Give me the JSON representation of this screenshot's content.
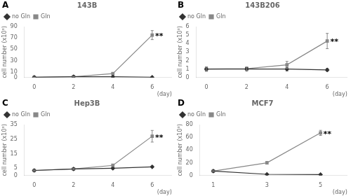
{
  "chart_data": [
    {
      "type": "line",
      "title": "143B",
      "xlabel": "(day)",
      "ylabel": "cell number (x10³)",
      "x": [
        0,
        2,
        4,
        6
      ],
      "series": [
        {
          "name": "no Gln",
          "color": "#333333",
          "marker": "diamond",
          "line_style": "solid",
          "values": [
            0.5,
            1.5,
            1.5,
            0.5
          ],
          "errors": [
            0.3,
            0.3,
            0.5,
            0.3
          ]
        },
        {
          "name": "Gln",
          "color": "#888888",
          "marker": "square",
          "line_style": "solid",
          "values": [
            0.5,
            1.5,
            7.0,
            75.0
          ],
          "errors": [
            0.3,
            0.5,
            1.5,
            8.0
          ]
        }
      ],
      "xlim": [
        -0.5,
        7
      ],
      "xticks": [
        0,
        2,
        4,
        6
      ],
      "ylim": [
        0,
        90
      ],
      "yticks": [
        0,
        10,
        30,
        50,
        70,
        90
      ],
      "annotations": [
        {
          "text": "A"
        },
        {
          "text": "**",
          "x": 6.15,
          "y": 73
        }
      ],
      "legend": "upper left",
      "grid": false
    },
    {
      "type": "line",
      "title": "143B206",
      "xlabel": "(day)",
      "ylabel": "cell number (x10³)",
      "x": [
        0,
        2,
        4,
        6
      ],
      "series": [
        {
          "name": "no Gln",
          "color": "#333333",
          "marker": "diamond",
          "line_style": "solid",
          "values": [
            1.0,
            1.0,
            1.0,
            0.9
          ],
          "errors": [
            0.25,
            0.2,
            0.2,
            0.15
          ]
        },
        {
          "name": "Gln",
          "color": "#888888",
          "marker": "square",
          "line_style": "solid",
          "values": [
            1.0,
            1.05,
            1.5,
            4.3
          ],
          "errors": [
            0.25,
            0.2,
            0.4,
            0.9
          ]
        }
      ],
      "xlim": [
        -0.5,
        7
      ],
      "xticks": [
        0,
        2,
        4,
        6
      ],
      "ylim": [
        0,
        6
      ],
      "yticks": [
        0,
        1,
        2,
        3,
        4,
        5,
        6
      ],
      "annotations": [
        {
          "text": "B"
        },
        {
          "text": "**",
          "x": 6.15,
          "y": 4.2
        }
      ],
      "legend": "upper left",
      "grid": false
    },
    {
      "type": "line",
      "title": "Hep3B",
      "xlabel": "(day)",
      "ylabel": "cell number (x10³)",
      "x": [
        0,
        2,
        4,
        6
      ],
      "series": [
        {
          "name": "no Gln",
          "color": "#333333",
          "marker": "diamond",
          "line_style": "solid",
          "values": [
            3.5,
            4.5,
            5.0,
            6.0
          ],
          "errors": [
            0.3,
            0.3,
            0.5,
            0.5
          ]
        },
        {
          "name": "Gln",
          "color": "#888888",
          "marker": "square",
          "line_style": "solid",
          "values": [
            3.5,
            4.5,
            7.0,
            27.0
          ],
          "errors": [
            0.3,
            0.3,
            0.8,
            4.0
          ]
        }
      ],
      "xlim": [
        -0.5,
        7
      ],
      "xticks": [
        0,
        2,
        4,
        6
      ],
      "ylim": [
        0,
        35
      ],
      "yticks": [
        0,
        5,
        15,
        25,
        35
      ],
      "annotations": [
        {
          "text": "C"
        },
        {
          "text": "**",
          "x": 6.15,
          "y": 26
        }
      ],
      "legend": "upper left",
      "grid": false
    },
    {
      "type": "line",
      "title": "MCF7",
      "xlabel": "(day)",
      "ylabel": "cell number (x10³)",
      "x": [
        1,
        3,
        5
      ],
      "series": [
        {
          "name": "no Gln",
          "color": "#333333",
          "marker": "diamond",
          "line_style": "solid",
          "values": [
            7.0,
            2.0,
            1.5
          ],
          "errors": [
            0.5,
            0.3,
            0.3
          ]
        },
        {
          "name": "Gln",
          "color": "#888888",
          "marker": "square",
          "line_style": "solid",
          "values": [
            7.0,
            20.0,
            67.0
          ],
          "errors": [
            0.5,
            2.0,
            4.0
          ]
        }
      ],
      "xlim": [
        0.5,
        6
      ],
      "xticks": [
        1,
        3,
        5
      ],
      "ylim": [
        0,
        80
      ],
      "yticks": [
        0,
        20,
        40,
        60,
        80
      ],
      "annotations": [
        {
          "text": "D"
        },
        {
          "text": "**",
          "x": 5.1,
          "y": 65
        }
      ],
      "legend": "upper left",
      "grid": false
    }
  ]
}
